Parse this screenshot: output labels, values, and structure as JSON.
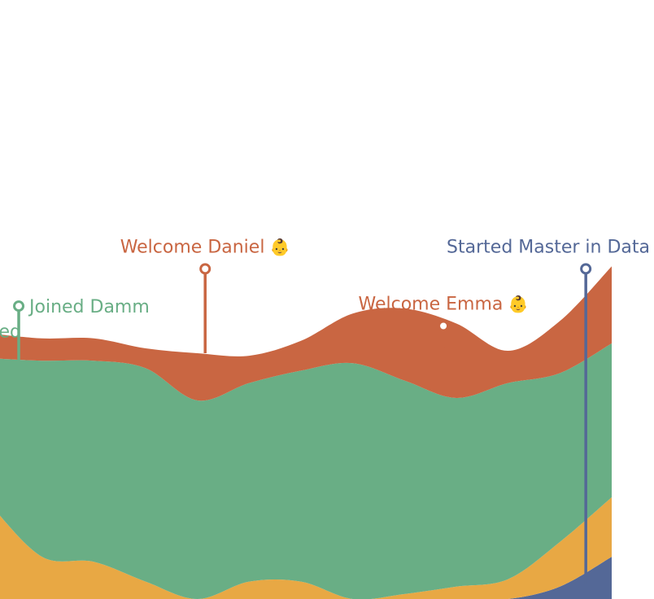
{
  "chart_data": {
    "type": "area",
    "stacked": true,
    "x": [
      0,
      1,
      2,
      3,
      4,
      5,
      6,
      7,
      8,
      9,
      10,
      11,
      12
    ],
    "series": [
      {
        "key": "navy",
        "color": "#546897",
        "values": [
          0,
          0,
          0,
          0,
          0,
          0,
          0,
          0,
          0,
          0,
          0,
          5,
          17
        ]
      },
      {
        "key": "yellow",
        "color": "#E8A844",
        "values": [
          38,
          17,
          15,
          7,
          0,
          7,
          7,
          0,
          2,
          5,
          8,
          18,
          24
        ]
      },
      {
        "key": "green",
        "color": "#69AE85",
        "values": [
          59,
          79,
          81,
          86,
          80,
          80,
          85,
          95,
          86,
          76,
          79,
          68,
          62
        ]
      },
      {
        "key": "orange",
        "color": "#C96642",
        "values": [
          10,
          9,
          9,
          8,
          19,
          11,
          12,
          20,
          29,
          30,
          13,
          21,
          31
        ]
      }
    ],
    "annotations": [
      {
        "label": "ed",
        "emoji": "",
        "color": "#69AE85",
        "x": 0.6,
        "point_value": 108,
        "label_value": 108,
        "stem": false
      },
      {
        "label": "Joined Damm",
        "emoji": "",
        "color": "#69AE85",
        "x": 0.55,
        "point_value": 96,
        "label_value": 118,
        "stem": true
      },
      {
        "label": "Welcome Daniel",
        "emoji": "👶",
        "color": "#C96642",
        "x": 4.15,
        "point_value": 99,
        "label_value": 133,
        "stem": true
      },
      {
        "label": "Welcome Emma",
        "emoji": "👶",
        "color": "#C96642",
        "x": 8.75,
        "point_value": 101,
        "label_value": 110,
        "stem": true
      },
      {
        "label": "Started Master in Data Science",
        "emoji": "",
        "color": "#546897",
        "x": 11.5,
        "point_value": 6,
        "label_value": 133,
        "stem": true
      }
    ]
  }
}
